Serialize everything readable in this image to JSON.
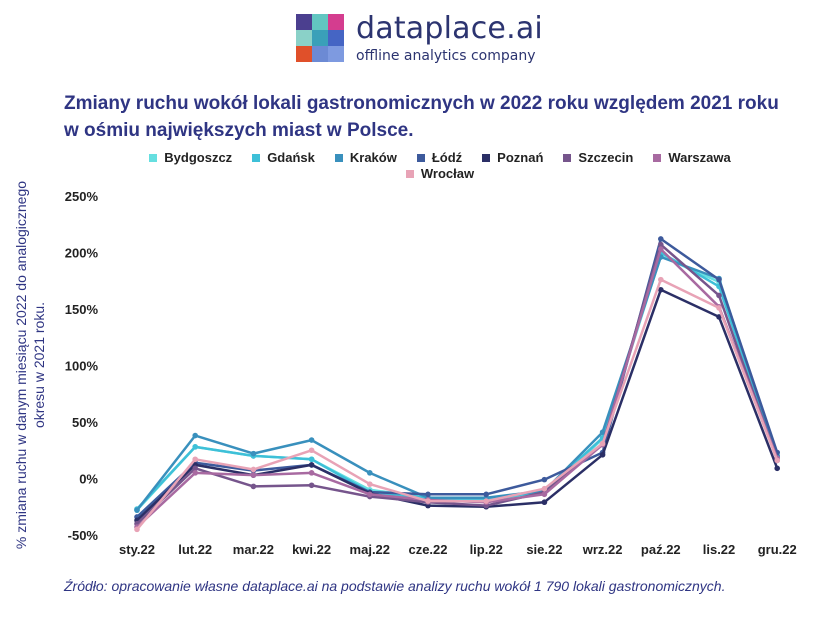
{
  "header": {
    "brand_name": "dataplace.ai",
    "tagline": "offline analytics company",
    "logo_colors": [
      "#4b3f8f",
      "#62c6c1",
      "#d43d8f",
      "#8ad1c8",
      "#3aa0b9",
      "#4565c4",
      "#e0502a",
      "#6c8ad4",
      "#7e9ae0"
    ]
  },
  "title_line1": "Zmiany ruchu wokół lokali gastronomicznych w 2022 roku względem 2021 roku",
  "title_line2": "w ośmiu największych miast w Polsce.",
  "source": "Źródło: opracowanie własne dataplace.ai na podstawie analizy ruchu wokół 1 790 lokali gastronomicznych.",
  "chart_data": {
    "type": "line",
    "ylabel": "% zmiana ruchu w danym miesiącu 2022 do analogicznego okresu w 2021 roku.",
    "categories": [
      "sty.22",
      "lut.22",
      "mar.22",
      "kwi.22",
      "maj.22",
      "cze.22",
      "lip.22",
      "sie.22",
      "wrz.22",
      "paź.22",
      "lis.22",
      "gru.22"
    ],
    "ylim": [
      -50,
      250
    ],
    "yticks": [
      -50,
      0,
      50,
      100,
      150,
      200,
      250
    ],
    "ytick_labels": [
      "-50%",
      "0%",
      "50%",
      "100%",
      "150%",
      "200%",
      "250%"
    ],
    "grid": false,
    "legend_position": "top",
    "series": [
      {
        "name": "Bydgoszcz",
        "color": "#66dfe0",
        "values": [
          -28,
          28,
          20,
          17,
          -10,
          -17,
          -20,
          -12,
          35,
          197,
          174,
          20
        ]
      },
      {
        "name": "Gdańsk",
        "color": "#3ec0d8",
        "values": [
          -27,
          28,
          20,
          17,
          -12,
          -17,
          -19,
          -11,
          36,
          200,
          170,
          19
        ]
      },
      {
        "name": "Kraków",
        "color": "#3990bd",
        "values": [
          -28,
          38,
          22,
          34,
          5,
          -17,
          -17,
          -11,
          41,
          196,
          177,
          20
        ]
      },
      {
        "name": "Łódź",
        "color": "#3d5a9c",
        "values": [
          -34,
          14,
          7,
          12,
          -12,
          -14,
          -14,
          -1,
          23,
          212,
          176,
          23
        ]
      },
      {
        "name": "Poznań",
        "color": "#2b2f66",
        "values": [
          -37,
          12,
          3,
          12,
          -13,
          -24,
          -25,
          -21,
          21,
          167,
          143,
          9
        ]
      },
      {
        "name": "Szczecin",
        "color": "#76558c",
        "values": [
          -40,
          9,
          -7,
          -6,
          -16,
          -21,
          -24,
          -12,
          30,
          207,
          162,
          16
        ]
      },
      {
        "name": "Warszawa",
        "color": "#a86aa1",
        "values": [
          -43,
          5,
          3,
          5,
          -14,
          -19,
          -21,
          -14,
          30,
          203,
          152,
          18
        ]
      },
      {
        "name": "Wrocław",
        "color": "#e8a3b6",
        "values": [
          -45,
          17,
          8,
          25,
          -5,
          -20,
          -20,
          -9,
          31,
          176,
          151,
          16
        ]
      }
    ]
  }
}
